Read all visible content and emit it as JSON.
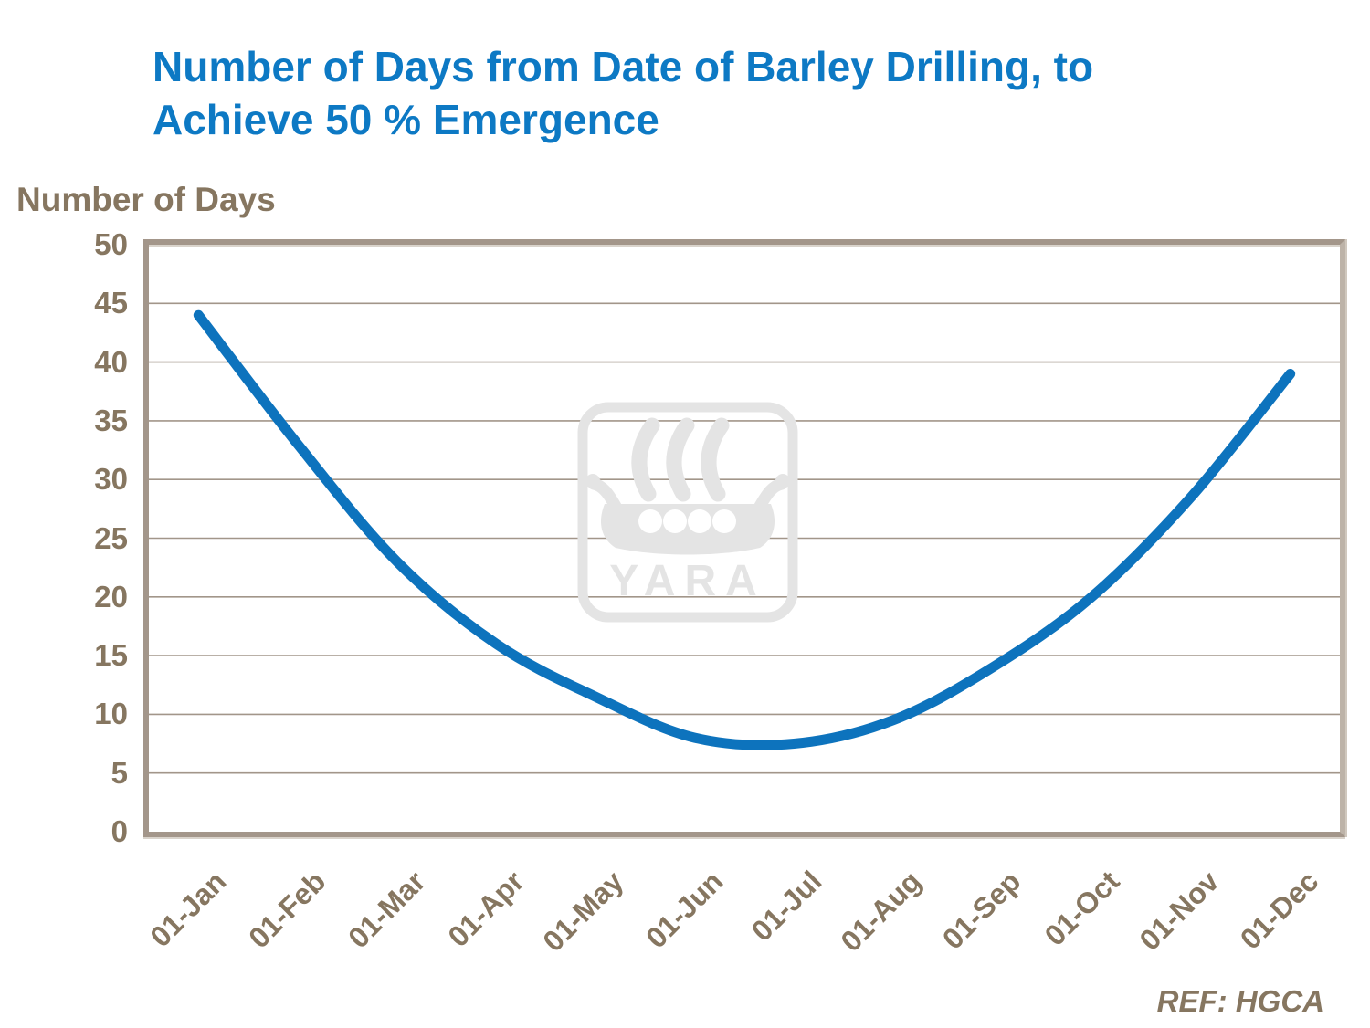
{
  "title": {
    "line1": "Number of Days from Date of Barley Drilling, to",
    "line2": "Achieve 50 % Emergence"
  },
  "footer": {
    "ref": "REF: HGCA"
  },
  "watermark": {
    "text": "YARA"
  },
  "colors": {
    "title_blue": "#0d79c4",
    "line_blue": "#0d73bd",
    "label_brown": "#867660",
    "grid": "#a2968a",
    "frame": "#a3968a",
    "watermark_gray": "#e4e4e4"
  },
  "chart_data": {
    "type": "line",
    "title": "Number of Days from Date of Barley Drilling, to Achieve 50 % Emergence",
    "categories": [
      "01-Jan",
      "01-Feb",
      "01-Mar",
      "01-Apr",
      "01-May",
      "01-Jun",
      "01-Jul",
      "01-Aug",
      "01-Sep",
      "01-Oct",
      "01-Nov",
      "01-Dec"
    ],
    "values": [
      44,
      33,
      23,
      16,
      11.5,
      8,
      7.5,
      9.5,
      14,
      20,
      28.5,
      39
    ],
    "xlabel": "",
    "ylabel": "Number of Days",
    "ylim": [
      0,
      50
    ],
    "ytick_step": 5,
    "grid": true,
    "legend": false,
    "line_width": 11,
    "smooth": true,
    "annotation": "REF: HGCA"
  }
}
